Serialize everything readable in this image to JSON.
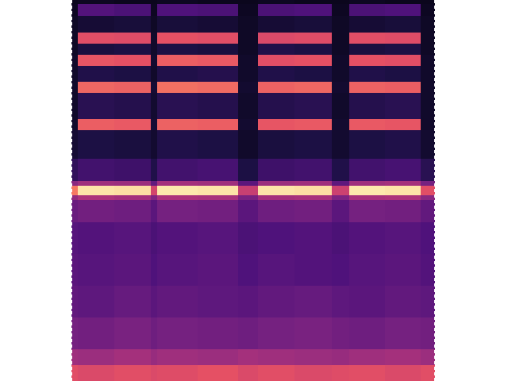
{
  "chart_data": {
    "type": "heatmap",
    "tick_labels": false,
    "grid": false,
    "xlim": [
      0,
      458
    ],
    "ylim": [
      0,
      480
    ],
    "xticks": [],
    "yticks": [],
    "x_bins": [
      0,
      8,
      54,
      100,
      108,
      159,
      210,
      235,
      281,
      328,
      350,
      395,
      440,
      458
    ],
    "y_bins": [
      0,
      20,
      40,
      80,
      120,
      160,
      200,
      228,
      234,
      246,
      252,
      280,
      316,
      330,
      363,
      377,
      397,
      411,
      425,
      439,
      460,
      475,
      480
    ],
    "color_range": [
      0,
      100
    ],
    "cells": [
      [
        62,
        60,
        62,
        60,
        61,
        63,
        60,
        62,
        60,
        61,
        62,
        60,
        62
      ],
      [
        45,
        44,
        46,
        43,
        45,
        44,
        46,
        45,
        44,
        43,
        45,
        46,
        44
      ],
      [
        35,
        34,
        36,
        33,
        35,
        34,
        33,
        35,
        36,
        34,
        33,
        35,
        34
      ],
      [
        30,
        29,
        31,
        28,
        30,
        29,
        28,
        30,
        31,
        29,
        28,
        30,
        29
      ],
      [
        28,
        27,
        28,
        25,
        27,
        28,
        25,
        27,
        26,
        25,
        27,
        28,
        26
      ],
      [
        27,
        26,
        27,
        24,
        26,
        27,
        24,
        25,
        26,
        24,
        26,
        27,
        25
      ],
      [
        32,
        34,
        33,
        28,
        35,
        34,
        28,
        33,
        34,
        28,
        35,
        34,
        30
      ],
      [
        42,
        48,
        46,
        38,
        48,
        47,
        36,
        46,
        47,
        37,
        47,
        48,
        40
      ],
      [
        72,
        95,
        94,
        58,
        96,
        95,
        55,
        95,
        94,
        56,
        96,
        95,
        62
      ],
      [
        40,
        45,
        44,
        30,
        46,
        45,
        28,
        44,
        45,
        29,
        45,
        46,
        35
      ],
      [
        18,
        22,
        21,
        14,
        22,
        23,
        13,
        21,
        22,
        14,
        22,
        23,
        16
      ],
      [
        10,
        13,
        12,
        9,
        14,
        13,
        8,
        12,
        13,
        9,
        13,
        14,
        9
      ],
      [
        8,
        66,
        65,
        10,
        67,
        66,
        9,
        64,
        65,
        9,
        65,
        64,
        8
      ],
      [
        8,
        16,
        15,
        9,
        16,
        15,
        8,
        15,
        16,
        8,
        15,
        16,
        8
      ],
      [
        8,
        68,
        67,
        10,
        70,
        69,
        9,
        67,
        68,
        9,
        67,
        66,
        8
      ],
      [
        8,
        14,
        13,
        8,
        14,
        15,
        8,
        14,
        13,
        8,
        14,
        13,
        8
      ],
      [
        8,
        64,
        63,
        9,
        66,
        65,
        8,
        62,
        63,
        8,
        63,
        62,
        8
      ],
      [
        7,
        12,
        13,
        8,
        13,
        12,
        7,
        14,
        13,
        7,
        12,
        13,
        7
      ],
      [
        7,
        62,
        61,
        8,
        63,
        62,
        7,
        60,
        61,
        7,
        62,
        61,
        7
      ],
      [
        7,
        10,
        11,
        7,
        11,
        10,
        7,
        10,
        11,
        7,
        10,
        11,
        7
      ],
      [
        6,
        26,
        24,
        6,
        25,
        24,
        6,
        24,
        25,
        6,
        24,
        25,
        6
      ],
      [
        5,
        6,
        5,
        5,
        6,
        5,
        5,
        6,
        5,
        5,
        6,
        5,
        5
      ]
    ]
  }
}
